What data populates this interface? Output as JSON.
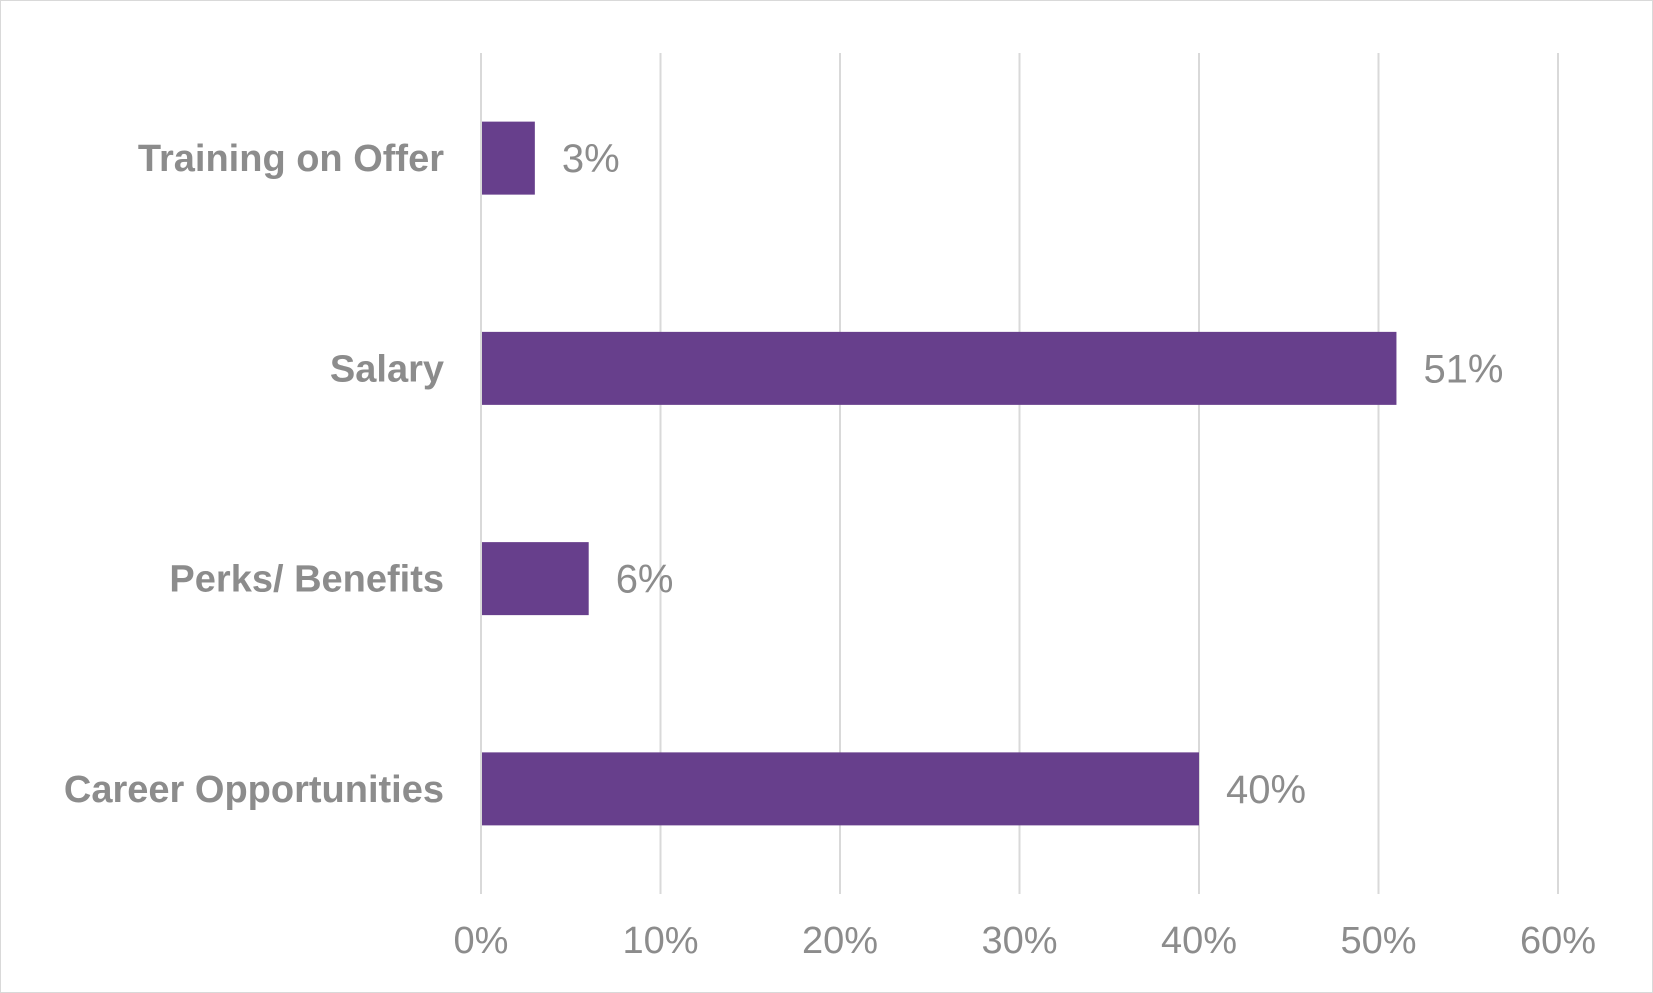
{
  "chart_data": {
    "type": "bar",
    "orientation": "horizontal",
    "title": "",
    "xlabel": "",
    "ylabel": "",
    "categories": [
      "Training on Offer",
      "Salary",
      "Perks/ Benefits",
      "Career Opportunities"
    ],
    "values": [
      3,
      51,
      6,
      40
    ],
    "data_labels": [
      "3%",
      "51%",
      "6%",
      "40%"
    ],
    "xlim": [
      0,
      60
    ],
    "x_ticks": [
      0,
      10,
      20,
      30,
      40,
      50,
      60
    ],
    "x_tick_labels": [
      "0%",
      "10%",
      "20%",
      "30%",
      "40%",
      "50%",
      "60%"
    ],
    "grid": true,
    "legend": "none",
    "colors": {
      "bar": "#673f8c",
      "text": "#8c8c8c",
      "grid": "#d9d9d9"
    }
  }
}
